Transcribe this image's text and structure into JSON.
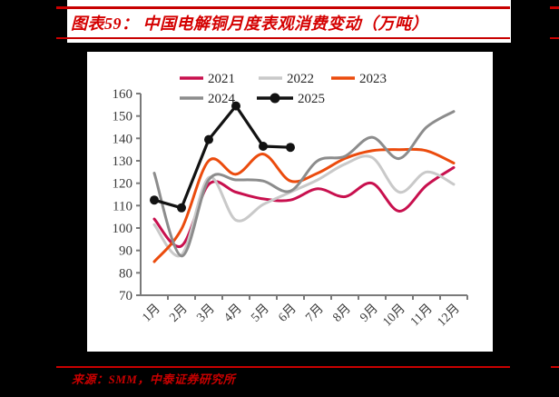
{
  "figure": {
    "title": "图表59： 中国电解铜月度表观消费变动（万吨）",
    "source": "来源：SMM，中泰证券研究所"
  },
  "colors": {
    "accent_red": "#c80000",
    "title_red": "#d40000",
    "axis_line": "#7a7a7a",
    "tick_text": "#3a3a3a",
    "legend_text": "#262626",
    "card_bg": "#ffffff",
    "page_bg": "#000000"
  },
  "chart_data": {
    "type": "line",
    "categories": [
      "1月",
      "2月",
      "3月",
      "4月",
      "5月",
      "6月",
      "7月",
      "8月",
      "9月",
      "10月",
      "11月",
      "12月"
    ],
    "ylim": [
      70,
      160
    ],
    "yticks": [
      70,
      80,
      90,
      100,
      110,
      120,
      130,
      140,
      150,
      160
    ],
    "grid": false,
    "legend_position": "top",
    "legend_rows": [
      [
        "2021",
        "2022",
        "2023"
      ],
      [
        "2024",
        "2025"
      ]
    ],
    "series": [
      {
        "name": "2021",
        "color": "#c8104e",
        "smooth": true,
        "marker": false,
        "values": [
          104,
          92,
          119.5,
          116,
          113,
          112.5,
          117.5,
          114,
          120,
          107.5,
          119,
          127
        ]
      },
      {
        "name": "2022",
        "color": "#c9c9c9",
        "smooth": true,
        "marker": false,
        "values": [
          101.5,
          88,
          122.5,
          103.5,
          110.5,
          116,
          121.5,
          128.5,
          131.5,
          116,
          125,
          119.5
        ]
      },
      {
        "name": "2023",
        "color": "#eb4b0d",
        "smooth": true,
        "marker": false,
        "values": [
          85,
          99.5,
          130,
          124,
          133,
          121,
          124.5,
          131,
          134.5,
          135,
          134.5,
          129
        ]
      },
      {
        "name": "2024",
        "color": "#8c8c8c",
        "smooth": true,
        "marker": false,
        "values": [
          124.5,
          87.5,
          121.5,
          121.5,
          121,
          116.5,
          130,
          132,
          140.5,
          131,
          145,
          152
        ]
      },
      {
        "name": "2025",
        "color": "#121212",
        "smooth": false,
        "marker": true,
        "values": [
          112.5,
          109,
          139.5,
          154.5,
          136.5,
          136
        ]
      }
    ]
  }
}
